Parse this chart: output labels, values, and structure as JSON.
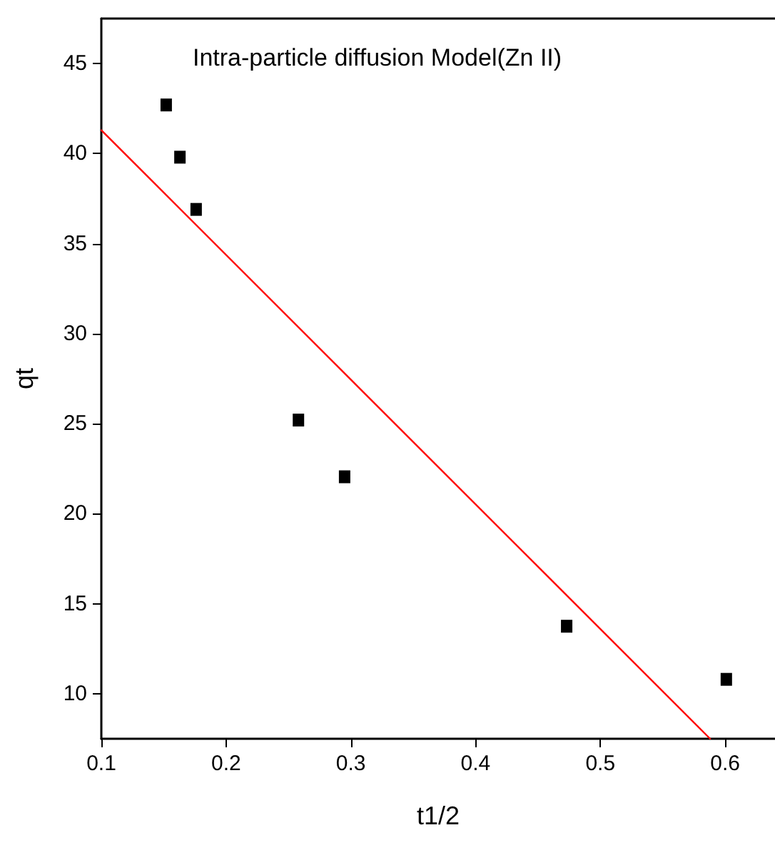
{
  "chart_data": {
    "type": "scatter",
    "title": "Intra-particle diffusion Model(Zn II)",
    "xlabel": "t1/2",
    "ylabel": "qt",
    "series": [
      {
        "color": "#000000",
        "marker": "square",
        "x": [
          0.152,
          0.163,
          0.176,
          0.258,
          0.295,
          0.473,
          0.601
        ],
        "values": [
          42.7,
          39.8,
          36.9,
          25.2,
          22.05,
          13.75,
          10.8
        ]
      },
      {
        "type": "line",
        "color": "#ff0000",
        "marker": "none",
        "line_style": "solid",
        "x": [
          0.1,
          0.588
        ],
        "values": [
          41.3,
          7.5
        ]
      }
    ],
    "xlim": [
      0.1,
      0.64
    ],
    "xticks": [
      0.1,
      0.2,
      0.3,
      0.4,
      0.5,
      0.6
    ],
    "ylim": [
      7.5,
      47.5
    ],
    "yticks": [
      10,
      15,
      20,
      25,
      30,
      35,
      40,
      45
    ],
    "grid": false
  }
}
